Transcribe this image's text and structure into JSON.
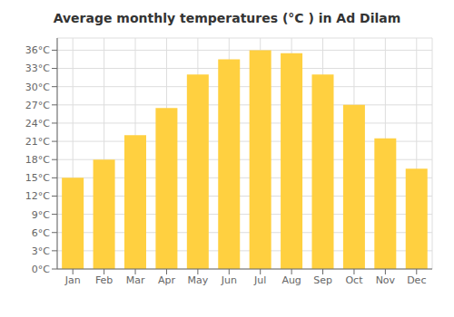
{
  "chart_data": {
    "type": "bar",
    "title": "Average monthly temperatures (°C ) in Ad Dilam",
    "categories": [
      "Jan",
      "Feb",
      "Mar",
      "Apr",
      "May",
      "Jun",
      "Jul",
      "Aug",
      "Sep",
      "Oct",
      "Nov",
      "Dec"
    ],
    "values": [
      15.0,
      18.0,
      22.0,
      26.5,
      32.0,
      34.5,
      36.0,
      35.5,
      32.0,
      27.0,
      21.5,
      16.5
    ],
    "color": "#FFD040",
    "ylim": [
      0,
      38
    ],
    "yticks": [
      {
        "value": 0,
        "label": "0°C"
      },
      {
        "value": 3,
        "label": "3°C"
      },
      {
        "value": 6,
        "label": "6°C"
      },
      {
        "value": 9,
        "label": "9°C"
      },
      {
        "value": 12,
        "label": "12°C"
      },
      {
        "value": 15,
        "label": "15°C"
      },
      {
        "value": 18,
        "label": "18°C"
      },
      {
        "value": 21,
        "label": "21°C"
      },
      {
        "value": 24,
        "label": "24°C"
      },
      {
        "value": 27,
        "label": "27°C"
      },
      {
        "value": 30,
        "label": "30°C"
      },
      {
        "value": 33,
        "label": "33°C"
      },
      {
        "value": 36,
        "label": "36°C"
      }
    ],
    "grid": true
  }
}
